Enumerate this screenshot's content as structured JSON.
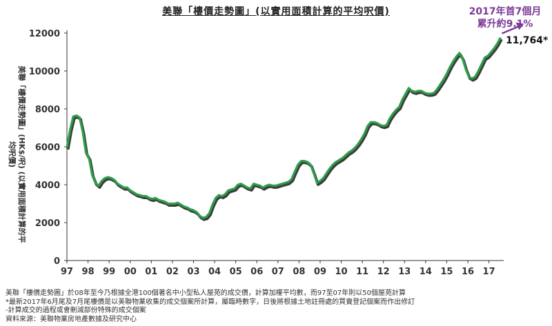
{
  "title": "美聯「樓價走勢圖」(以實用面積計算的平均呎價)",
  "annotation": {
    "line1": "2017年首7個月",
    "line2": "累升約9.1%",
    "latest_label": "11,764*"
  },
  "colors": {
    "line": "#2e9e4a",
    "shadow": "#1a1a1a",
    "arrow": "#7b3a96"
  },
  "footer": [
    "美聯「樓價走勢圖」於08年至今乃根據全港100個著名中小型私人屋苑的成交價，計算加權平均數，而97至07年則以50個屋苑計算",
    "*最新2017年6月尾及7月尾樓價是以美聯物業收集的成交個案所計算，屬臨時數字，日後將根據土地註冊處的買賣登記個案而作出修訂",
    "-計算成交的過程或會刪減部份特殊的成交個案",
    "資料來源：美聯物業房地產數據及研究中心"
  ],
  "chart_data": {
    "type": "line",
    "title": "美聯「樓價走勢圖」(以實用面積計算的平均呎價)",
    "ylabel": "美聯「樓價走勢圖」(HK$/呎) (以實用面積計算的平均呎價)",
    "xlabel": "",
    "ylim": [
      0,
      12000
    ],
    "yticks": [
      "0",
      "2000",
      "4000",
      "6000",
      "8000",
      "10000",
      "12000"
    ],
    "ytick_values": [
      0,
      2000,
      4000,
      6000,
      8000,
      10000,
      12000
    ],
    "xticks": [
      "97",
      "98",
      "99",
      "00",
      "01",
      "02",
      "03",
      "04",
      "05",
      "06",
      "07",
      "08",
      "09",
      "10",
      "11",
      "12",
      "13",
      "14",
      "15",
      "16",
      "17"
    ],
    "xlim": [
      1997.0,
      2017.7
    ],
    "grid": false,
    "series": [
      {
        "points": [
          [
            1997.0,
            5950
          ],
          [
            1997.15,
            6900
          ],
          [
            1997.3,
            7600
          ],
          [
            1997.45,
            7650
          ],
          [
            1997.6,
            7550
          ],
          [
            1997.75,
            6800
          ],
          [
            1997.9,
            5700
          ],
          [
            1998.05,
            5400
          ],
          [
            1998.2,
            4500
          ],
          [
            1998.35,
            4100
          ],
          [
            1998.5,
            3950
          ],
          [
            1998.65,
            4200
          ],
          [
            1998.8,
            4350
          ],
          [
            1998.95,
            4400
          ],
          [
            1999.1,
            4350
          ],
          [
            1999.25,
            4250
          ],
          [
            1999.4,
            4050
          ],
          [
            1999.55,
            3950
          ],
          [
            1999.7,
            3850
          ],
          [
            1999.85,
            3850
          ],
          [
            2000.0,
            3700
          ],
          [
            2000.15,
            3600
          ],
          [
            2000.3,
            3500
          ],
          [
            2000.45,
            3450
          ],
          [
            2000.6,
            3400
          ],
          [
            2000.75,
            3400
          ],
          [
            2000.9,
            3300
          ],
          [
            2001.05,
            3250
          ],
          [
            2001.2,
            3300
          ],
          [
            2001.35,
            3200
          ],
          [
            2001.5,
            3150
          ],
          [
            2001.65,
            3100
          ],
          [
            2001.8,
            3000
          ],
          [
            2001.95,
            3000
          ],
          [
            2002.1,
            3000
          ],
          [
            2002.25,
            3050
          ],
          [
            2002.4,
            2950
          ],
          [
            2002.55,
            2850
          ],
          [
            2002.7,
            2800
          ],
          [
            2002.85,
            2700
          ],
          [
            2003.0,
            2650
          ],
          [
            2003.15,
            2550
          ],
          [
            2003.3,
            2350
          ],
          [
            2003.45,
            2250
          ],
          [
            2003.6,
            2300
          ],
          [
            2003.75,
            2500
          ],
          [
            2003.9,
            2950
          ],
          [
            2004.05,
            3300
          ],
          [
            2004.2,
            3450
          ],
          [
            2004.35,
            3400
          ],
          [
            2004.5,
            3500
          ],
          [
            2004.65,
            3700
          ],
          [
            2004.8,
            3750
          ],
          [
            2004.95,
            3800
          ],
          [
            2005.1,
            4000
          ],
          [
            2005.25,
            4050
          ],
          [
            2005.4,
            3950
          ],
          [
            2005.55,
            3850
          ],
          [
            2005.7,
            3800
          ],
          [
            2005.85,
            4050
          ],
          [
            2006.0,
            4000
          ],
          [
            2006.15,
            3950
          ],
          [
            2006.3,
            3850
          ],
          [
            2006.45,
            3950
          ],
          [
            2006.6,
            4000
          ],
          [
            2006.75,
            3950
          ],
          [
            2006.9,
            3950
          ],
          [
            2007.05,
            4000
          ],
          [
            2007.2,
            4050
          ],
          [
            2007.35,
            4100
          ],
          [
            2007.5,
            4150
          ],
          [
            2007.65,
            4300
          ],
          [
            2007.8,
            4700
          ],
          [
            2007.95,
            5050
          ],
          [
            2008.1,
            5250
          ],
          [
            2008.25,
            5250
          ],
          [
            2008.4,
            5200
          ],
          [
            2008.55,
            5050
          ],
          [
            2008.7,
            4600
          ],
          [
            2008.85,
            4100
          ],
          [
            2009.0,
            4200
          ],
          [
            2009.15,
            4350
          ],
          [
            2009.3,
            4600
          ],
          [
            2009.45,
            4850
          ],
          [
            2009.6,
            5050
          ],
          [
            2009.75,
            5200
          ],
          [
            2009.9,
            5300
          ],
          [
            2010.05,
            5400
          ],
          [
            2010.2,
            5550
          ],
          [
            2010.35,
            5700
          ],
          [
            2010.5,
            5800
          ],
          [
            2010.65,
            5950
          ],
          [
            2010.8,
            6150
          ],
          [
            2010.95,
            6400
          ],
          [
            2011.1,
            6700
          ],
          [
            2011.25,
            7100
          ],
          [
            2011.4,
            7300
          ],
          [
            2011.55,
            7300
          ],
          [
            2011.7,
            7250
          ],
          [
            2011.85,
            7150
          ],
          [
            2012.0,
            7100
          ],
          [
            2012.15,
            7150
          ],
          [
            2012.3,
            7500
          ],
          [
            2012.45,
            7750
          ],
          [
            2012.6,
            7950
          ],
          [
            2012.75,
            8100
          ],
          [
            2012.9,
            8500
          ],
          [
            2013.05,
            8800
          ],
          [
            2013.2,
            9100
          ],
          [
            2013.35,
            8950
          ],
          [
            2013.5,
            8900
          ],
          [
            2013.65,
            8950
          ],
          [
            2013.8,
            8950
          ],
          [
            2013.95,
            8850
          ],
          [
            2014.1,
            8800
          ],
          [
            2014.25,
            8800
          ],
          [
            2014.4,
            8850
          ],
          [
            2014.55,
            9050
          ],
          [
            2014.7,
            9300
          ],
          [
            2014.85,
            9550
          ],
          [
            2015.0,
            9850
          ],
          [
            2015.15,
            10200
          ],
          [
            2015.3,
            10500
          ],
          [
            2015.45,
            10750
          ],
          [
            2015.6,
            10950
          ],
          [
            2015.75,
            10650
          ],
          [
            2015.9,
            10100
          ],
          [
            2016.05,
            9700
          ],
          [
            2016.2,
            9600
          ],
          [
            2016.35,
            9700
          ],
          [
            2016.5,
            10000
          ],
          [
            2016.65,
            10350
          ],
          [
            2016.8,
            10700
          ],
          [
            2016.95,
            10800
          ],
          [
            2017.1,
            11000
          ],
          [
            2017.25,
            11200
          ],
          [
            2017.4,
            11450
          ],
          [
            2017.55,
            11764
          ]
        ]
      }
    ],
    "annotations": [
      "2017年首7個月 累升約9.1%",
      "11,764*"
    ]
  }
}
